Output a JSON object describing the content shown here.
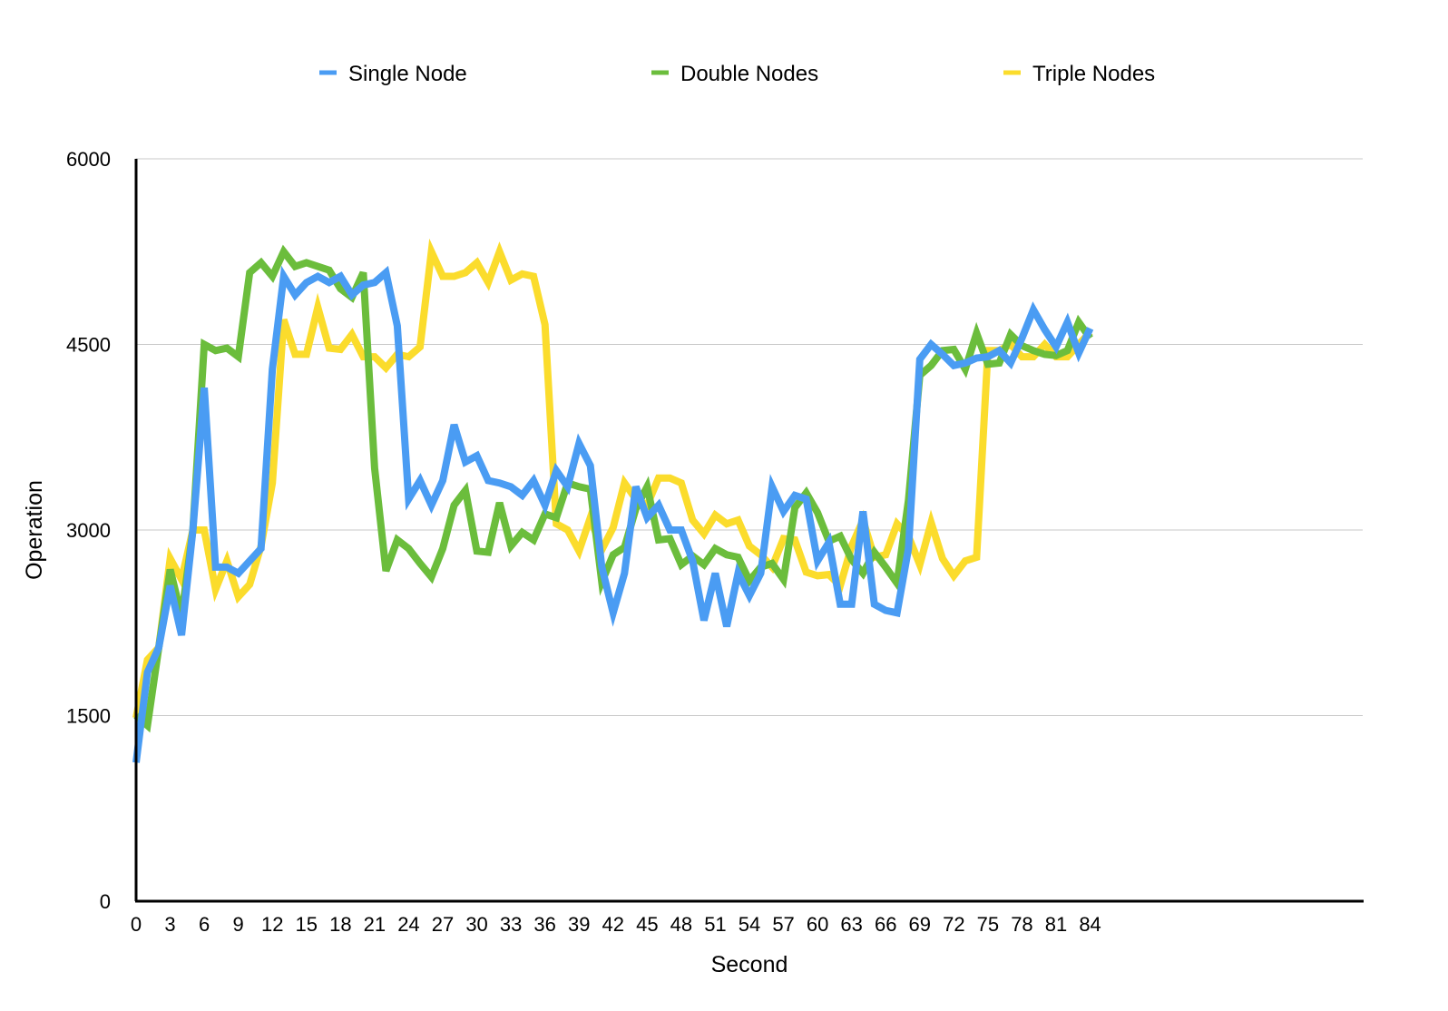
{
  "chart_data": {
    "type": "line",
    "title": "",
    "xlabel": "Second",
    "ylabel": "Operation",
    "xlim": [
      0,
      108
    ],
    "ylim": [
      0,
      6000
    ],
    "x_ticks": [
      0,
      3,
      6,
      9,
      12,
      15,
      18,
      21,
      24,
      27,
      30,
      33,
      36,
      39,
      42,
      45,
      48,
      51,
      54,
      57,
      60,
      63,
      66,
      69,
      72,
      75,
      78,
      81,
      84
    ],
    "y_ticks": [
      0,
      1500,
      3000,
      4500,
      6000
    ],
    "grid": "horizontal",
    "legend": "top",
    "series": [
      {
        "name": "Single Node",
        "color": "#4a9cf3",
        "x": [
          0,
          1,
          2,
          3,
          4,
          5,
          6,
          7,
          8,
          9,
          10,
          11,
          12,
          13,
          14,
          15,
          16,
          17,
          18,
          19,
          20,
          21,
          22,
          23,
          24,
          25,
          26,
          27,
          28,
          29,
          30,
          31,
          32,
          33,
          34,
          35,
          36,
          37,
          38,
          39,
          40,
          41,
          42,
          43,
          44,
          45,
          46,
          47,
          48,
          49,
          50,
          51,
          52,
          53,
          54,
          55,
          56,
          57,
          58,
          59,
          60,
          61,
          62,
          63,
          64,
          65,
          66,
          67,
          68,
          69,
          70,
          71,
          72,
          73,
          74,
          75,
          76,
          77,
          78,
          79,
          80,
          81,
          82,
          83,
          84
        ],
        "values": [
          1120,
          1850,
          2050,
          2550,
          2150,
          3000,
          4150,
          2700,
          2700,
          2650,
          2750,
          2850,
          4300,
          5050,
          4900,
          5000,
          5050,
          5000,
          5050,
          4900,
          4980,
          5000,
          5080,
          4650,
          3250,
          3400,
          3200,
          3400,
          3850,
          3550,
          3600,
          3400,
          3380,
          3350,
          3280,
          3400,
          3200,
          3480,
          3350,
          3700,
          3520,
          2700,
          2330,
          2650,
          3350,
          3100,
          3200,
          3000,
          3000,
          2750,
          2270,
          2650,
          2220,
          2650,
          2470,
          2650,
          3350,
          3150,
          3280,
          3250,
          2750,
          2900,
          2400,
          2400,
          3150,
          2400,
          2350,
          2330,
          2850,
          4380,
          4500,
          4420,
          4330,
          4350,
          4390,
          4400,
          4450,
          4350,
          4550,
          4780,
          4620,
          4480,
          4680,
          4430,
          4630
        ]
      },
      {
        "name": "Double Nodes",
        "color": "#6bbd3c",
        "x": [
          0,
          1,
          2,
          3,
          4,
          5,
          6,
          7,
          8,
          9,
          10,
          11,
          12,
          13,
          14,
          15,
          16,
          17,
          18,
          19,
          20,
          21,
          22,
          23,
          24,
          25,
          26,
          27,
          28,
          29,
          30,
          31,
          32,
          33,
          34,
          35,
          36,
          37,
          38,
          39,
          40,
          41,
          42,
          43,
          44,
          45,
          46,
          47,
          48,
          49,
          50,
          51,
          52,
          53,
          54,
          55,
          56,
          57,
          58,
          59,
          60,
          61,
          62,
          63,
          64,
          65,
          66,
          67,
          68,
          69,
          70,
          71,
          72,
          73,
          74,
          75,
          76,
          77,
          78,
          79,
          80,
          81,
          82,
          83,
          84
        ],
        "values": [
          1500,
          1420,
          2050,
          2680,
          2300,
          3000,
          4500,
          4450,
          4470,
          4400,
          5080,
          5160,
          5050,
          5250,
          5130,
          5160,
          5130,
          5100,
          4950,
          4880,
          5080,
          3500,
          2670,
          2920,
          2850,
          2730,
          2620,
          2850,
          3200,
          3320,
          2830,
          2820,
          3220,
          2870,
          2980,
          2920,
          3130,
          3100,
          3380,
          3350,
          3330,
          2580,
          2800,
          2860,
          3170,
          3350,
          2920,
          2930,
          2720,
          2790,
          2720,
          2850,
          2800,
          2780,
          2590,
          2700,
          2730,
          2600,
          3180,
          3300,
          3140,
          2910,
          2950,
          2760,
          2650,
          2820,
          2700,
          2570,
          3240,
          4250,
          4330,
          4450,
          4460,
          4300,
          4590,
          4340,
          4350,
          4580,
          4490,
          4450,
          4420,
          4410,
          4450,
          4680,
          4550
        ]
      },
      {
        "name": "Triple Nodes",
        "color": "#fbdc2c",
        "x": [
          0,
          1,
          2,
          3,
          4,
          5,
          6,
          7,
          8,
          9,
          10,
          11,
          12,
          13,
          14,
          15,
          16,
          17,
          18,
          19,
          20,
          21,
          22,
          23,
          24,
          25,
          26,
          27,
          28,
          29,
          30,
          31,
          32,
          33,
          34,
          35,
          36,
          37,
          38,
          39,
          40,
          41,
          42,
          43,
          44,
          45,
          46,
          47,
          48,
          49,
          50,
          51,
          52,
          53,
          54,
          55,
          56,
          57,
          58,
          59,
          60,
          61,
          62,
          63,
          64,
          65,
          66,
          67,
          68,
          69,
          70,
          71,
          72,
          73,
          74,
          75,
          76,
          77,
          78,
          79,
          80,
          81,
          82,
          83,
          84
        ],
        "values": [
          1480,
          1950,
          2050,
          2770,
          2600,
          3000,
          3000,
          2520,
          2750,
          2460,
          2560,
          2870,
          3380,
          4700,
          4420,
          4420,
          4800,
          4470,
          4460,
          4580,
          4400,
          4400,
          4310,
          4420,
          4400,
          4480,
          5250,
          5050,
          5050,
          5080,
          5160,
          5000,
          5250,
          5020,
          5070,
          5050,
          4660,
          3050,
          3000,
          2830,
          3100,
          2840,
          3020,
          3380,
          3250,
          3200,
          3420,
          3420,
          3380,
          3080,
          2970,
          3120,
          3050,
          3080,
          2870,
          2800,
          2700,
          2930,
          2920,
          2660,
          2630,
          2640,
          2550,
          2870,
          3080,
          2780,
          2800,
          3050,
          2950,
          2720,
          3060,
          2770,
          2630,
          2750,
          2780,
          4450,
          4450,
          4500,
          4400,
          4400,
          4500,
          4400,
          4400,
          4500,
          4600
        ]
      }
    ]
  }
}
